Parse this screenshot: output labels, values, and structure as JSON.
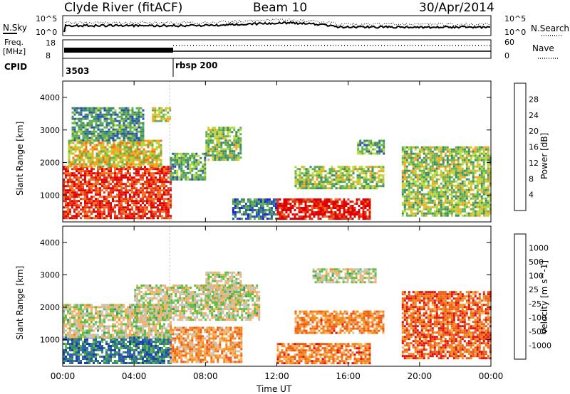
{
  "header": {
    "station": "Clyde River (fitACF)",
    "beam": "Beam 10",
    "date": "30/Apr/2014"
  },
  "status_panels": {
    "nsky_label": "N.Sky",
    "nsky_ticks": [
      "10^5",
      "10^0"
    ],
    "nsearch_label": "N.Search",
    "nsearch_ticks": [
      "10^5",
      "10^0"
    ],
    "freq_label": "Freq.",
    "freq_unit": "[MHz]",
    "freq_ticks": [
      "18",
      "8"
    ],
    "nave_label": "Nave",
    "nave_ticks": [
      "60",
      "0"
    ],
    "cpid_label": "CPID",
    "cpid_segments": [
      {
        "start_hour": 0,
        "label": "3503"
      },
      {
        "start_hour": 6,
        "label": "rbsp 200"
      }
    ]
  },
  "chart_data": [
    {
      "type": "heatmap",
      "panel": "power",
      "xlabel": "Time UT",
      "ylabel": "Slant Range [km]",
      "x_range_hours": [
        0,
        24
      ],
      "ylim": [
        180,
        4500
      ],
      "yticks": [
        "4000",
        "3000",
        "2000",
        "1000"
      ],
      "xticks": [
        "00:00",
        "04:00",
        "08:00",
        "12:00",
        "16:00",
        "20:00",
        "00:00"
      ],
      "colorbar_label": "Power [dB]",
      "colorbar_ticks": [
        "28",
        "24",
        "20",
        "16",
        "12",
        "8",
        "4"
      ],
      "colorscale": [
        "#1d1ddc",
        "#2a50b8",
        "#3d8a6a",
        "#62b050",
        "#b8d83a",
        "#f5a623",
        "#f07020",
        "#e83018",
        "#e00000"
      ],
      "regions": [
        {
          "t0": 0.0,
          "t1": 6.0,
          "r0": 300,
          "r1": 1900,
          "level": 0.85
        },
        {
          "t0": 0.3,
          "t1": 5.5,
          "r0": 1900,
          "r1": 2700,
          "level": 0.55
        },
        {
          "t0": 0.5,
          "t1": 4.5,
          "r0": 2700,
          "r1": 3700,
          "level": 0.3
        },
        {
          "t0": 5.0,
          "t1": 6.0,
          "r0": 3300,
          "r1": 3700,
          "level": 0.5
        },
        {
          "t0": 6.0,
          "t1": 8.0,
          "r0": 1500,
          "r1": 2300,
          "level": 0.35
        },
        {
          "t0": 8.0,
          "t1": 10.0,
          "r0": 2100,
          "r1": 3100,
          "level": 0.4
        },
        {
          "t0": 9.5,
          "t1": 12.0,
          "r0": 250,
          "r1": 900,
          "level": 0.25
        },
        {
          "t0": 12.0,
          "t1": 17.2,
          "r0": 300,
          "r1": 900,
          "level": 0.9
        },
        {
          "t0": 13.0,
          "t1": 18.0,
          "r0": 1200,
          "r1": 1900,
          "level": 0.45
        },
        {
          "t0": 16.5,
          "t1": 18.0,
          "r0": 2300,
          "r1": 2700,
          "level": 0.35
        },
        {
          "t0": 19.0,
          "t1": 24.0,
          "r0": 400,
          "r1": 2500,
          "level": 0.45
        }
      ]
    },
    {
      "type": "heatmap",
      "panel": "velocity",
      "xlabel": "Time UT",
      "ylabel": "Slant Range [km]",
      "x_range_hours": [
        0,
        24
      ],
      "ylim": [
        180,
        4500
      ],
      "yticks": [
        "4000",
        "3000",
        "2000",
        "1000"
      ],
      "xticks": [
        "00:00",
        "04:00",
        "08:00",
        "12:00",
        "16:00",
        "20:00",
        "00:00"
      ],
      "colorbar_label": "Velocity [m s^-1]",
      "colorbar_ticks": [
        "1000",
        "500",
        "100",
        "25",
        "-25",
        "-100",
        "-500",
        "-1000"
      ],
      "colorscale": [
        "#1f3fb0",
        "#2f62a8",
        "#3e8f6f",
        "#5cbf3e",
        "#c4c4bc",
        "#f7b060",
        "#f08a1c",
        "#f05a14",
        "#e01010"
      ],
      "regions": [
        {
          "t0": 0.0,
          "t1": 6.0,
          "r0": 300,
          "r1": 1100,
          "level": 0.22
        },
        {
          "t0": 0.0,
          "t1": 6.0,
          "r0": 1100,
          "r1": 2100,
          "level": 0.5
        },
        {
          "t0": 4.0,
          "t1": 11.0,
          "r0": 1600,
          "r1": 2700,
          "level": 0.5
        },
        {
          "t0": 6.0,
          "t1": 10.0,
          "r0": 300,
          "r1": 1400,
          "level": 0.7
        },
        {
          "t0": 8.0,
          "t1": 10.0,
          "r0": 2100,
          "r1": 3100,
          "level": 0.5
        },
        {
          "t0": 12.0,
          "t1": 17.2,
          "r0": 300,
          "r1": 900,
          "level": 0.75
        },
        {
          "t0": 14.0,
          "t1": 17.5,
          "r0": 2800,
          "r1": 3200,
          "level": 0.5
        },
        {
          "t0": 13.0,
          "t1": 18.0,
          "r0": 1200,
          "r1": 1900,
          "level": 0.72
        },
        {
          "t0": 19.0,
          "t1": 24.0,
          "r0": 400,
          "r1": 2500,
          "level": 0.82
        }
      ]
    }
  ]
}
